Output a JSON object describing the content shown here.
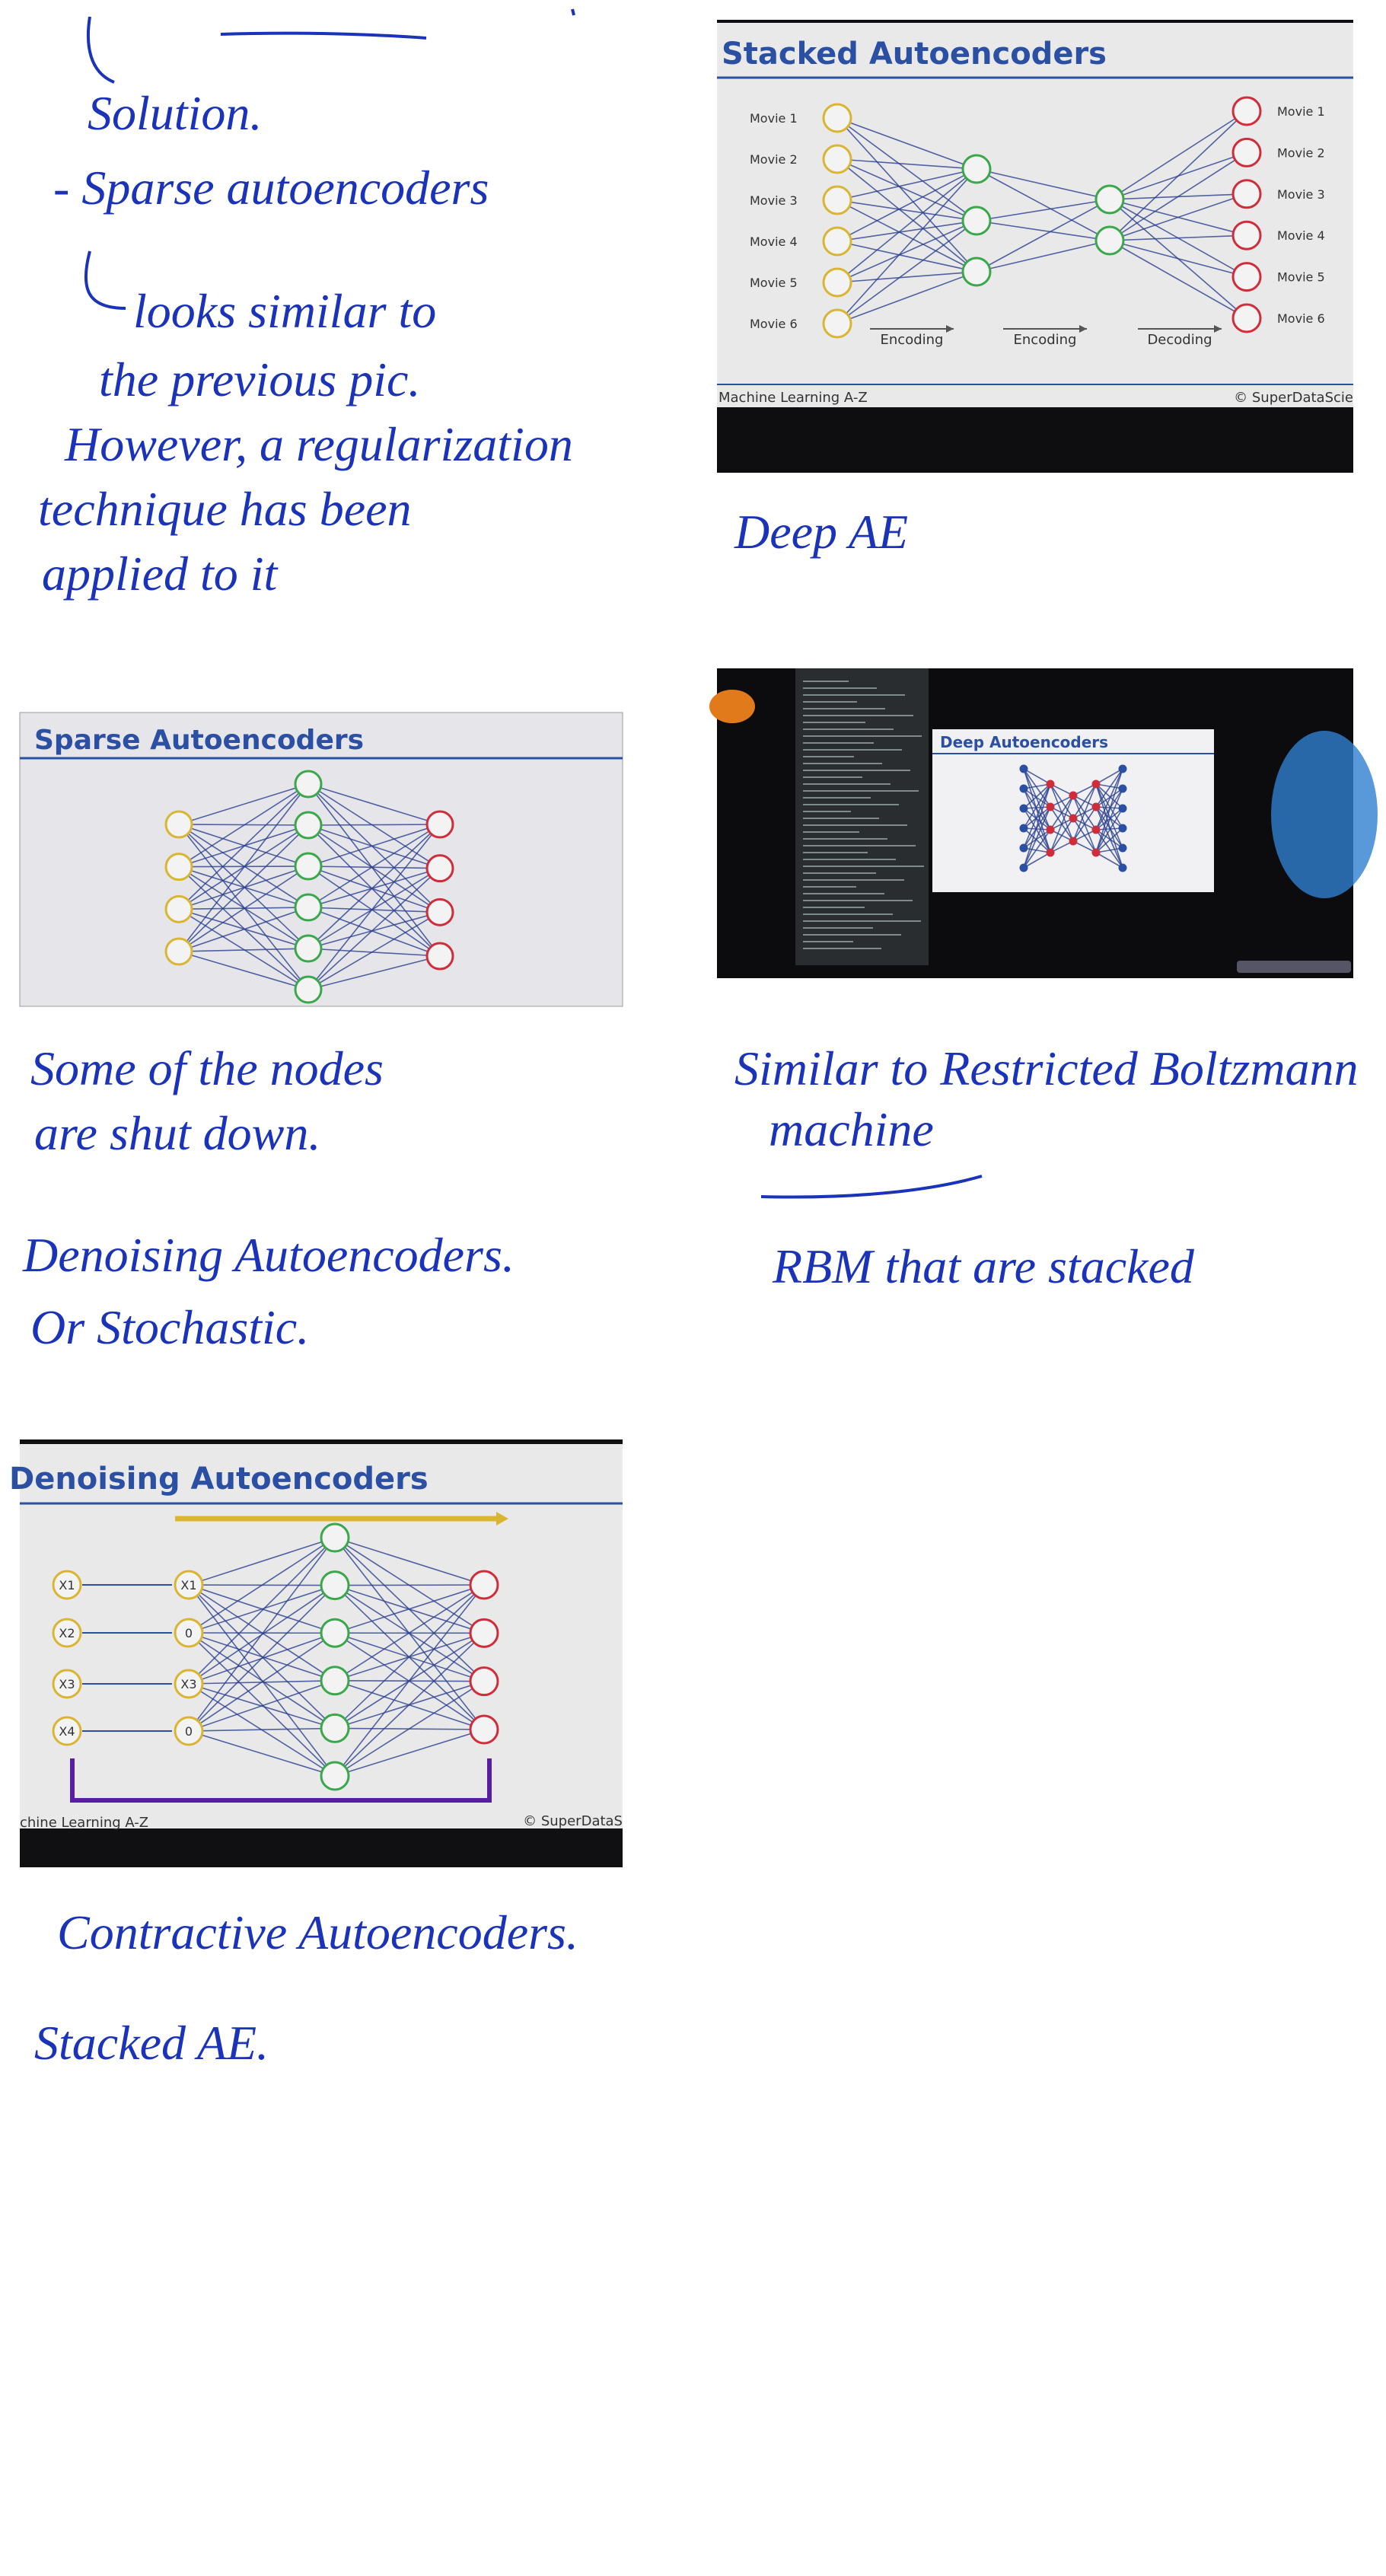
{
  "notes_top": [
    "Solution.",
    "- Sparse autoencoders",
    "looks similar to",
    "the previous pic.",
    "However, a regularization",
    "technique has been",
    "applied to it"
  ],
  "stacked_slide": {
    "title": "Stacked Autoencoders",
    "inputs": [
      "Movie 1",
      "Movie 2",
      "Movie 3",
      "Movie 4",
      "Movie 5",
      "Movie 6"
    ],
    "outputs": [
      "Movie 1",
      "Movie 2",
      "Movie 3",
      "Movie 4",
      "Movie 5",
      "Movie 6"
    ],
    "stages": [
      "Encoding",
      "Encoding",
      "Decoding"
    ],
    "footer_left": "Machine Learning A-Z",
    "footer_right": "© SuperDataScie"
  },
  "deep_note": "Deep AE",
  "sparse_slide": {
    "title": "Sparse Autoencoders"
  },
  "deep_photo": {
    "title": "Deep Autoencoders"
  },
  "sparse_notes": [
    "Some of the nodes",
    "are shut down."
  ],
  "denoising_notes": [
    "Denoising Autoencoders.",
    "Or Stochastic."
  ],
  "rbm_notes": [
    "Similar to Restricted Boltzmann",
    "machine",
    "RBM that are stacked"
  ],
  "denoising_slide": {
    "title": "Denoising Autoencoders",
    "inputs": [
      "X1",
      "X2",
      "X3",
      "X4"
    ],
    "corrupted": [
      "X1",
      "0",
      "X3",
      "0"
    ],
    "footer_left": "chine Learning A-Z",
    "footer_right": "© SuperDataS"
  },
  "final_notes": [
    "Contractive Autoencoders.",
    "Stacked AE."
  ]
}
